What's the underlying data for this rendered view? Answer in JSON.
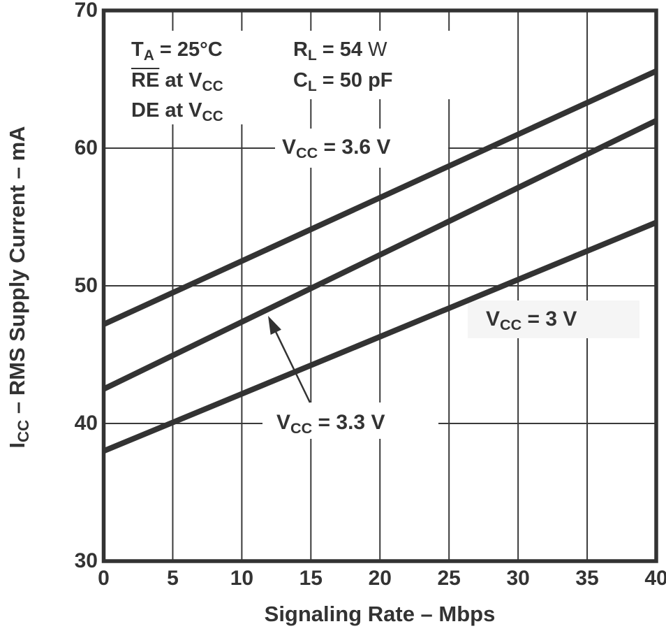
{
  "accent_color": "#333333",
  "background_color": "#ffffff",
  "chart_data": {
    "type": "line",
    "title": "",
    "xlabel": "Signaling Rate – Mbps",
    "ylabel": "ICC – RMS Supply Current – mA",
    "xlim": [
      0,
      40
    ],
    "ylim": [
      30,
      70
    ],
    "xticks": [
      "0",
      "5",
      "10",
      "15",
      "20",
      "25",
      "30",
      "35",
      "40"
    ],
    "yticks": [
      "30",
      "40",
      "50",
      "60",
      "70"
    ],
    "grid": true,
    "grid_x_step_mbps": 5,
    "grid_y_step_ma": 10,
    "line_color": "#333333",
    "line_width": 8,
    "series": [
      {
        "name": "VCC = 3.6 V",
        "x": [
          0,
          40
        ],
        "y": [
          47.2,
          65.6
        ]
      },
      {
        "name": "VCC = 3.3 V",
        "x": [
          0,
          40
        ],
        "y": [
          42.5,
          62.0
        ]
      },
      {
        "name": "VCC = 3 V",
        "x": [
          0,
          40
        ],
        "y": [
          38.0,
          54.6
        ]
      }
    ],
    "legend_position": "inline-labels"
  },
  "labels": {
    "cond_ta": [
      {
        "t": "T"
      },
      {
        "t": "A",
        "s": "sub"
      },
      {
        "t": " = 25°C"
      }
    ],
    "cond_re": [
      {
        "t": "RE",
        "s": "over"
      },
      {
        "t": " at V"
      },
      {
        "t": "CC",
        "s": "sub"
      }
    ],
    "cond_de": [
      {
        "t": "DE at V"
      },
      {
        "t": "CC",
        "s": "sub"
      }
    ],
    "cond_rl": [
      {
        "t": "R"
      },
      {
        "t": "L",
        "s": "sub"
      },
      {
        "t": " = 54 "
      },
      {
        "t": "W",
        "s": "light"
      }
    ],
    "cond_cl": [
      {
        "t": "C"
      },
      {
        "t": "L",
        "s": "sub"
      },
      {
        "t": " = 50 pF"
      }
    ],
    "vcc36": [
      {
        "t": "V"
      },
      {
        "t": "CC",
        "s": "sub"
      },
      {
        "t": " = 3.6 V"
      }
    ],
    "vcc33": [
      {
        "t": "V"
      },
      {
        "t": "CC",
        "s": "sub"
      },
      {
        "t": " = 3.3 V"
      }
    ],
    "vcc3": [
      {
        "t": "V"
      },
      {
        "t": "CC",
        "s": "sub"
      },
      {
        "t": " = 3 V"
      }
    ],
    "y_title": [
      {
        "t": "I"
      },
      {
        "t": "CC",
        "s": "sub"
      },
      {
        "t": " – RMS Supply Current – mA"
      }
    ],
    "x_title": [
      {
        "t": "Signaling Rate – Mbps"
      }
    ]
  }
}
